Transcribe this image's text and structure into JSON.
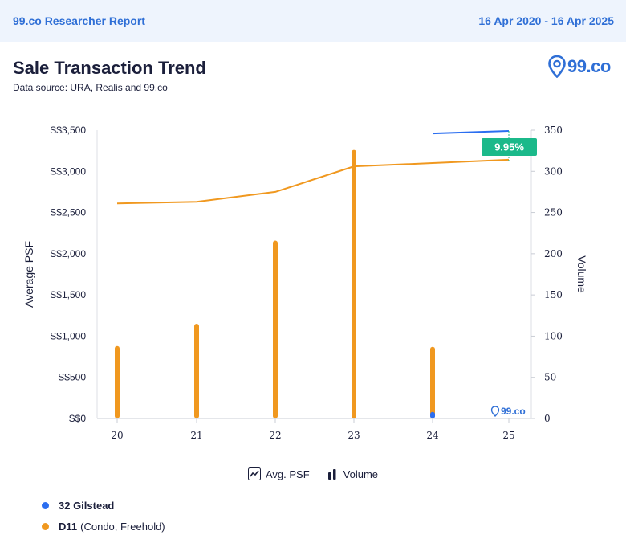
{
  "header": {
    "report_title": "99.co Researcher Report",
    "date_range": "16 Apr 2020 - 16 Apr 2025"
  },
  "page": {
    "title": "Sale Transaction Trend",
    "subtitle": "Data source: URA, Realis and 99.co",
    "logo_text": "99.co",
    "watermark_text": "99.co"
  },
  "legend": {
    "avg_psf_label": "Avg. PSF",
    "volume_label": "Volume"
  },
  "series_list": [
    {
      "name": "32 Gilstead",
      "detail": "",
      "color": "#2b6ef0"
    },
    {
      "name": "D11",
      "detail": "(Condo, Freehold)",
      "color": "#f0981f"
    }
  ],
  "colors": {
    "gilstead": "#2b6ef0",
    "d11": "#f0981f",
    "badge": "#1bb98a",
    "axis_text": "#1b1f3b",
    "brand": "#2f6fd6"
  },
  "chart_data": {
    "type": "bar+line",
    "x": [
      "20",
      "21",
      "22",
      "23",
      "24",
      "25"
    ],
    "ylabel_left": "Average PSF",
    "ylabel_right": "Volume",
    "ylim_left": [
      0,
      3500
    ],
    "ylim_right": [
      0,
      350
    ],
    "yticks_left": [
      "S$0",
      "S$500",
      "S$1,000",
      "S$1,500",
      "S$2,000",
      "S$2,500",
      "S$3,000",
      "S$3,500"
    ],
    "yticks_right": [
      "0",
      "50",
      "100",
      "150",
      "200",
      "250",
      "300",
      "350"
    ],
    "grid": false,
    "line_series": [
      {
        "name": "D11",
        "values": [
          2610,
          2630,
          2750,
          3060,
          3100,
          3140
        ]
      },
      {
        "name": "32 Gilstead",
        "values": [
          null,
          null,
          null,
          null,
          3460,
          3490
        ]
      }
    ],
    "bar_series": [
      {
        "name": "D11",
        "values": [
          88,
          115,
          216,
          326,
          87,
          0
        ]
      },
      {
        "name": "32 Gilstead",
        "values": [
          0,
          0,
          0,
          0,
          8,
          0
        ]
      }
    ],
    "annotation": "9.95%"
  }
}
